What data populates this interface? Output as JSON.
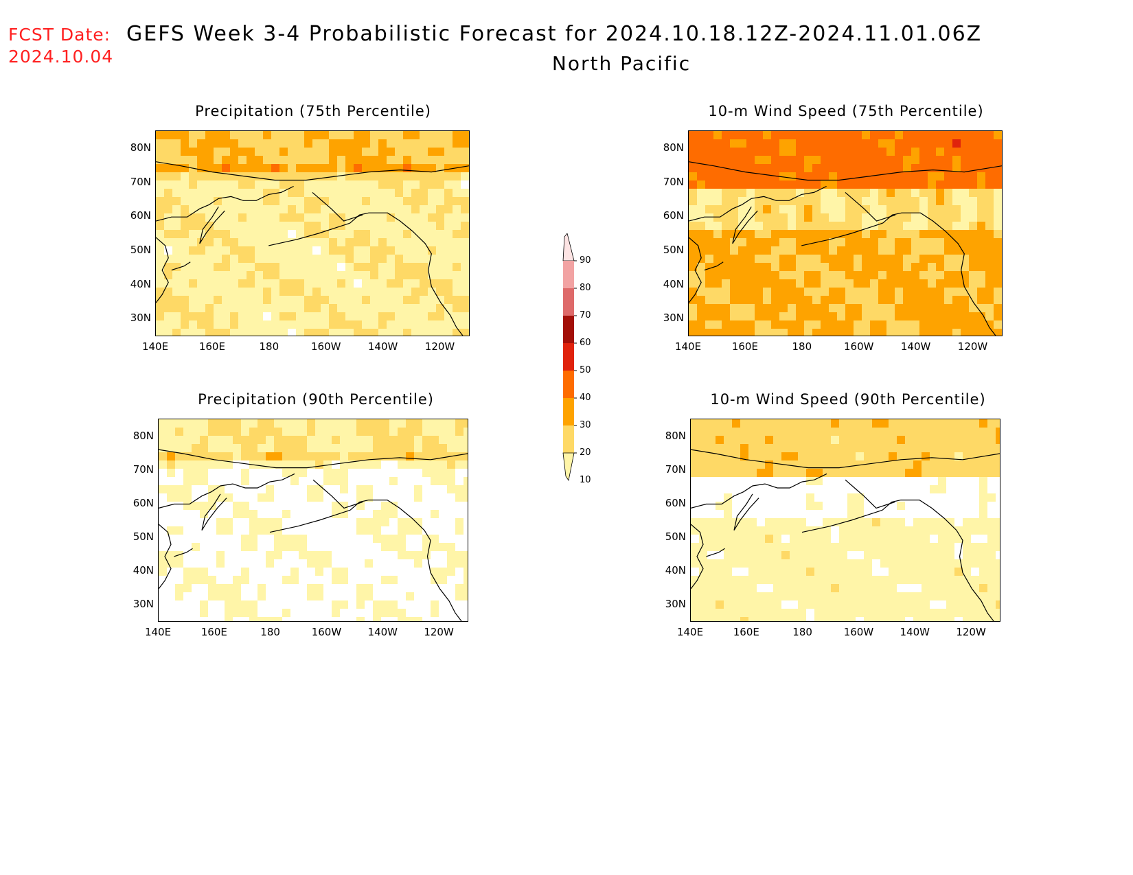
{
  "header": {
    "fcst_label": "FCST Date:",
    "fcst_date": "2024.10.04",
    "title": "GEFS Week 3-4 Probabilistic Forecast for 2024.10.18.12Z-2024.11.01.06Z",
    "region": "North Pacific"
  },
  "axes": {
    "lat_labels": [
      "80N",
      "70N",
      "60N",
      "50N",
      "40N",
      "30N"
    ],
    "lon_labels": [
      "140E",
      "160E",
      "180",
      "160W",
      "140W",
      "120W"
    ]
  },
  "panels": [
    {
      "id": "precip75",
      "title": "Precipitation (75th Percentile)",
      "intensity": 1.3,
      "pattern": "precip"
    },
    {
      "id": "wind75",
      "title": "10-m Wind Speed (75th Percentile)",
      "intensity": 2.6,
      "pattern": "wind"
    },
    {
      "id": "precip90",
      "title": "Precipitation (90th Percentile)",
      "intensity": 0.35,
      "pattern": "precip"
    },
    {
      "id": "wind90",
      "title": "10-m Wind Speed (90th Percentile)",
      "intensity": 0.9,
      "pattern": "wind"
    }
  ],
  "colorbar": {
    "labels": [
      "90",
      "80",
      "70",
      "60",
      "50",
      "40",
      "30",
      "20",
      "10"
    ],
    "colors": [
      "#fde4e4",
      "#f2a3a3",
      "#de6a6a",
      "#a30f08",
      "#e0220c",
      "#fe6c00",
      "#fea300",
      "#fed966",
      "#fff5a8"
    ]
  },
  "colors": {
    "white": "#ffffff",
    "c10": "#fff5a8",
    "c20": "#fed966",
    "c30": "#fea300",
    "c40": "#fe6c00",
    "c50": "#e0220c",
    "c60": "#a30f08",
    "c70": "#de6a6a",
    "c80": "#f2a3a3",
    "c90": "#fde4e4"
  }
}
